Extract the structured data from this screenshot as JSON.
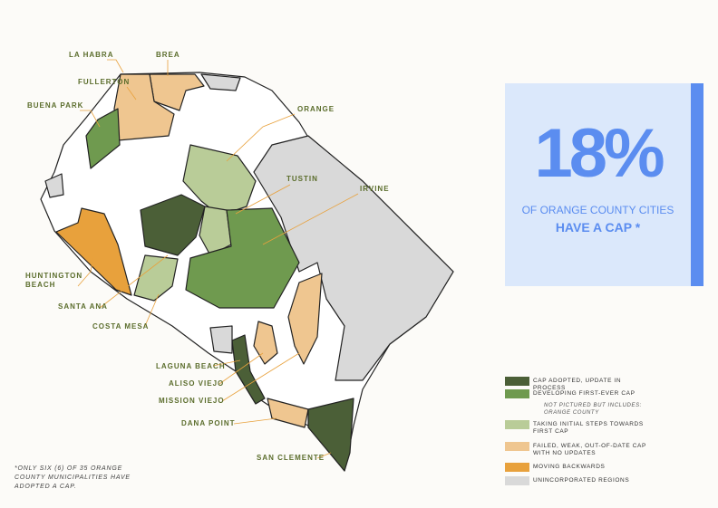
{
  "cities": [
    "LA HABRA",
    "BREA",
    "FULLERTON",
    "BUENA PARK",
    "ORANGE",
    "TUSTIN",
    "IRVINE",
    "HUNTINGTON BEACH",
    "SANTA ANA",
    "COSTA MESA",
    "LAGUNA BEACH",
    "ALISO VIEJO",
    "MISSION VIEJO",
    "DANA POINT",
    "SAN CLEMENTE"
  ],
  "stat": {
    "value": "18%",
    "line1": "OF ORANGE COUNTY CITIES",
    "line2": "HAVE A CAP *"
  },
  "legend": [
    {
      "label": "CAP ADOPTED, UPDATE IN PROCESS",
      "color": "#4b5f37"
    },
    {
      "label": "DEVELOPING FIRST-EVER CAP",
      "color": "#6f9a4f",
      "note": "NOT PICTURED BUT INCLUDES: ORANGE COUNTY"
    },
    {
      "label": "TAKING INITIAL STEPS TOWARDS FIRST CAP",
      "color": "#b9cc98"
    },
    {
      "label": "FAILED, WEAK, OUT-OF-DATE CAP WITH NO UPDATES",
      "color": "#efc690"
    },
    {
      "label": "MOVING BACKWARDS",
      "color": "#e8a13c"
    },
    {
      "label": "UNINCORPORATED REGIONS",
      "color": "#d9d9d9"
    }
  ],
  "footnote": "*ONLY SIX (6) OF 35 ORANGE COUNTY MUNICIPALITIES HAVE ADOPTED A CAP."
}
